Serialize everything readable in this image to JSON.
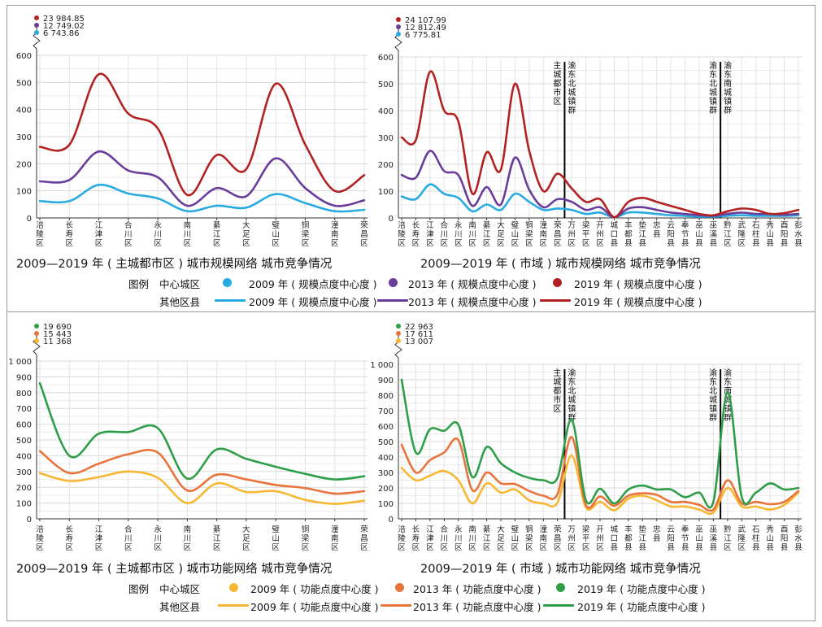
{
  "chart_data": [
    {
      "type": "line",
      "title": "2009—2019 年 ( 主城都市区 ) 城市规模网络 城市竞争情况",
      "categories": [
        "涪陵区",
        "长寿区",
        "江津区",
        "合川区",
        "永川区",
        "南川区",
        "綦江区",
        "大足区",
        "璧山区",
        "铜梁区",
        "潼南区",
        "荣昌区"
      ],
      "ylim": [
        0,
        600
      ],
      "yticks": [
        "0",
        "100",
        "200",
        "300",
        "400",
        "500",
        "600"
      ],
      "break_values": [
        "23 984.85",
        "12 749.02",
        "6 743.86"
      ],
      "series": [
        {
          "name": "2009 年 ( 规模点度中心度 )",
          "color": "#29abe2",
          "values": [
            62,
            62,
            122,
            90,
            72,
            25,
            45,
            38,
            88,
            55,
            25,
            30
          ]
        },
        {
          "name": "2013 年 ( 规模点度中心度 )",
          "color": "#6a3d9a",
          "values": [
            135,
            140,
            245,
            175,
            150,
            45,
            110,
            80,
            220,
            110,
            45,
            65
          ]
        },
        {
          "name": "2019 年 ( 规模点度中心度 )",
          "color": "#b22222",
          "values": [
            262,
            270,
            530,
            385,
            330,
            85,
            232,
            180,
            495,
            270,
            100,
            158
          ]
        }
      ]
    },
    {
      "type": "line",
      "title": "2009—2019 年 ( 市域 ) 城市规模网络 城市竞争情况",
      "categories": [
        "涪陵区",
        "长寿区",
        "江津区",
        "合川区",
        "永川区",
        "南川区",
        "綦江区",
        "大足区",
        "璧山区",
        "铜梁区",
        "潼南区",
        "荣昌区",
        "万州区",
        "梁平区",
        "开州区",
        "城口县",
        "丰都县",
        "垫江县",
        "忠县",
        "云阳县",
        "奉节县",
        "巫山县",
        "巫溪县",
        "黔江区",
        "武隆区",
        "石柱县",
        "秀山县",
        "酉阳县",
        "彭水县"
      ],
      "ylim": [
        0,
        600
      ],
      "yticks": [
        "0",
        "100",
        "200",
        "300",
        "400",
        "500",
        "600"
      ],
      "break_values": [
        "24 107.99",
        "12 812.49",
        "6 775.81"
      ],
      "dividers": [
        {
          "after_index": 11,
          "label": "主城都市区"
        },
        {
          "after_index": 11,
          "label": "渝东北城镇群"
        },
        {
          "after_index": 22,
          "label": "渝东北城镇群"
        },
        {
          "after_index": 22,
          "label": "渝东南城镇群"
        }
      ],
      "series": [
        {
          "name": "2009 年 ( 规模点度中心度 )",
          "color": "#29abe2",
          "values": [
            80,
            70,
            125,
            90,
            75,
            25,
            50,
            30,
            90,
            60,
            30,
            35,
            30,
            15,
            20,
            3,
            20,
            20,
            15,
            10,
            8,
            5,
            5,
            8,
            10,
            8,
            8,
            8,
            10
          ]
        },
        {
          "name": "2013 年 ( 规模点度中心度 )",
          "color": "#6a3d9a",
          "values": [
            160,
            150,
            250,
            175,
            160,
            45,
            115,
            50,
            225,
            105,
            40,
            70,
            60,
            30,
            40,
            3,
            35,
            40,
            30,
            20,
            15,
            10,
            8,
            15,
            20,
            15,
            15,
            12,
            15
          ]
        },
        {
          "name": "2019 年 ( 规模点度中心度 )",
          "color": "#b22222",
          "values": [
            300,
            290,
            545,
            400,
            360,
            90,
            245,
            180,
            500,
            250,
            100,
            165,
            110,
            60,
            70,
            3,
            60,
            75,
            60,
            45,
            30,
            15,
            10,
            25,
            35,
            30,
            15,
            18,
            30
          ]
        }
      ]
    },
    {
      "type": "line",
      "title": "2009—2019 年 ( 主城都市区 ) 城市功能网络 城市竞争情况",
      "categories": [
        "涪陵区",
        "长寿区",
        "江津区",
        "合川区",
        "永川区",
        "南川区",
        "綦江区",
        "大足区",
        "璧山区",
        "铜梁区",
        "潼南区",
        "荣昌区"
      ],
      "ylim": [
        0,
        1000
      ],
      "yticks": [
        "0",
        "100",
        "200",
        "300",
        "400",
        "500",
        "600",
        "700",
        "800",
        "900",
        "1 000"
      ],
      "break_values": [
        "19 690",
        "15 443",
        "11 368"
      ],
      "series": [
        {
          "name": "2009 年 ( 功能点度中心度 )",
          "color": "#f7b733",
          "values": [
            290,
            240,
            265,
            300,
            260,
            100,
            225,
            170,
            175,
            120,
            95,
            115
          ]
        },
        {
          "name": "2013 年 ( 功能点度中心度 )",
          "color": "#e8743b",
          "values": [
            430,
            290,
            350,
            410,
            420,
            180,
            280,
            250,
            215,
            195,
            160,
            175
          ]
        },
        {
          "name": "2019 年 ( 功能点度中心度 )",
          "color": "#2e9e48",
          "values": [
            860,
            400,
            540,
            550,
            575,
            255,
            440,
            380,
            330,
            285,
            250,
            270
          ]
        }
      ]
    },
    {
      "type": "line",
      "title": "2009—2019 年 ( 市域 ) 城市功能网络 城市竞争情况",
      "categories": [
        "涪陵区",
        "长寿区",
        "江津区",
        "合川区",
        "永川区",
        "南川区",
        "綦江区",
        "大足区",
        "璧山区",
        "铜梁区",
        "潼南区",
        "荣昌区",
        "万州区",
        "梁平区",
        "开州区",
        "城口县",
        "丰都县",
        "垫江县",
        "忠县",
        "云阳县",
        "奉节县",
        "巫山县",
        "巫溪县",
        "黔江区",
        "武隆区",
        "石柱县",
        "秀山县",
        "酉阳县",
        "彭水县"
      ],
      "ylim": [
        0,
        1000
      ],
      "yticks": [
        "0",
        "100",
        "200",
        "300",
        "400",
        "500",
        "600",
        "700",
        "800",
        "900",
        "1 000"
      ],
      "break_values": [
        "22 963",
        "17 611",
        "13 007"
      ],
      "dividers": [
        {
          "after_index": 11,
          "label": "主城都市区"
        },
        {
          "after_index": 11,
          "label": "渝东北城镇群"
        },
        {
          "after_index": 22,
          "label": "渝东北城镇群"
        },
        {
          "after_index": 22,
          "label": "渝东南城镇群"
        }
      ],
      "series": [
        {
          "name": "2009 年 ( 功能点度中心度 )",
          "color": "#f7b733",
          "values": [
            330,
            250,
            280,
            310,
            250,
            100,
            230,
            170,
            190,
            120,
            100,
            105,
            410,
            75,
            110,
            55,
            130,
            150,
            120,
            80,
            80,
            60,
            40,
            200,
            80,
            80,
            60,
            90,
            170
          ]
        },
        {
          "name": "2013 年 ( 功能点度中心度 )",
          "color": "#e8743b",
          "values": [
            480,
            300,
            380,
            430,
            510,
            185,
            300,
            230,
            225,
            180,
            150,
            160,
            530,
            90,
            145,
            85,
            150,
            165,
            155,
            110,
            110,
            90,
            60,
            250,
            100,
            110,
            95,
            110,
            180
          ]
        },
        {
          "name": "2019 年 ( 功能点度中心度 )",
          "color": "#2e9e48",
          "values": [
            900,
            430,
            580,
            570,
            610,
            270,
            465,
            360,
            300,
            265,
            250,
            265,
            640,
            120,
            195,
            100,
            190,
            215,
            190,
            190,
            140,
            170,
            110,
            820,
            140,
            170,
            230,
            190,
            200
          ]
        }
      ]
    }
  ],
  "legend_top": {
    "label_legend": "图例",
    "label_center": "中心城区",
    "label_other": "其他区县",
    "items": [
      "2009 年 ( 规模点度中心度 )",
      "2013 年 ( 规模点度中心度 )",
      "2019 年 ( 规模点度中心度 )"
    ],
    "colors": [
      "#29abe2",
      "#6a3d9a",
      "#b22222"
    ]
  },
  "legend_bottom": {
    "label_legend": "图例",
    "label_center": "中心城区",
    "label_other": "其他区县",
    "items": [
      "2009 年 ( 功能点度中心度 )",
      "2013 年 ( 功能点度中心度 )",
      "2019 年 ( 功能点度中心度 )"
    ],
    "colors": [
      "#f7b733",
      "#e8743b",
      "#2e9e48"
    ]
  }
}
